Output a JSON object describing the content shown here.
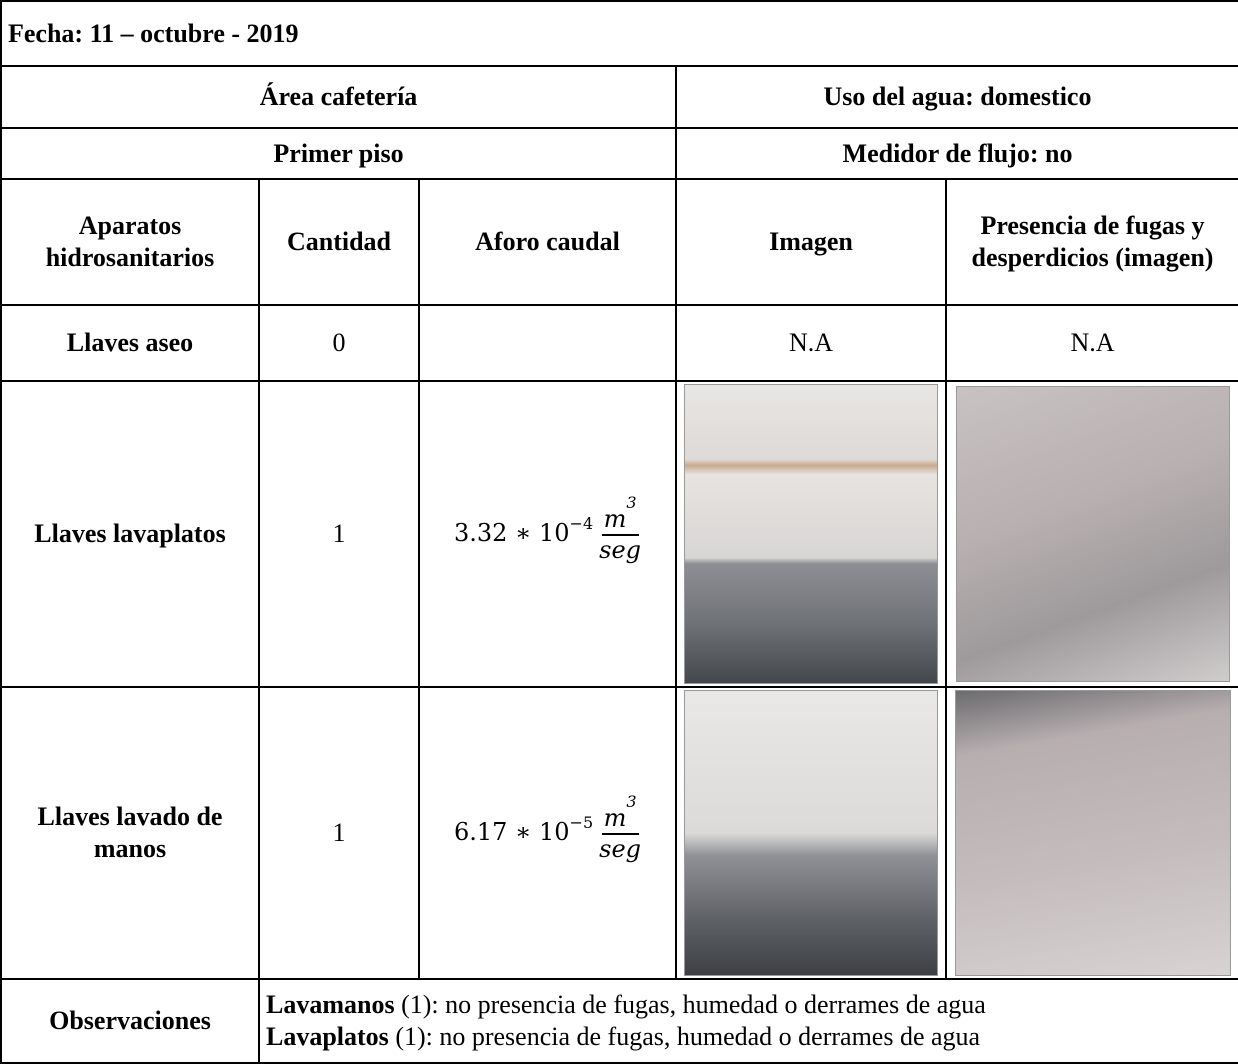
{
  "header": {
    "fecha": "Fecha: 11 – octubre - 2019"
  },
  "area": {
    "left": "Área cafetería",
    "right": "Uso del agua: domestico"
  },
  "floor": {
    "left": "Primer piso",
    "right": "Medidor de flujo:  no"
  },
  "table": {
    "columns": [
      "Aparatos hidrosanitarios",
      "Cantidad",
      "Aforo caudal",
      "Imagen",
      "Presencia de fugas y desperdicios (imagen)"
    ],
    "rows": [
      {
        "aparato": "Llaves aseo",
        "cantidad": "0",
        "imagen": "N.A",
        "fugas": "N.A"
      },
      {
        "aparato": "Llaves lavaplatos",
        "cantidad": "1",
        "aforo": {
          "prefix": "3.32 ∗ 10",
          "exponent": "−4",
          "numerator": "m",
          "numerator_exponent": "3",
          "denominator": "seg"
        }
      },
      {
        "aparato": "Llaves lavado de manos",
        "cantidad": "1",
        "aforo": {
          "prefix": "6.17 ∗ 10",
          "exponent": "−5",
          "numerator": "m",
          "numerator_exponent": "3",
          "denominator": "seg"
        }
      }
    ]
  },
  "observaciones": {
    "label": "Observaciones",
    "lines": [
      {
        "bold": "Lavamanos",
        "text": " (1): no presencia de fugas, humedad o derrames de agua"
      },
      {
        "bold": "Lavaplatos",
        "text": " (1): no presencia de fugas, humedad o derrames de agua"
      }
    ]
  }
}
